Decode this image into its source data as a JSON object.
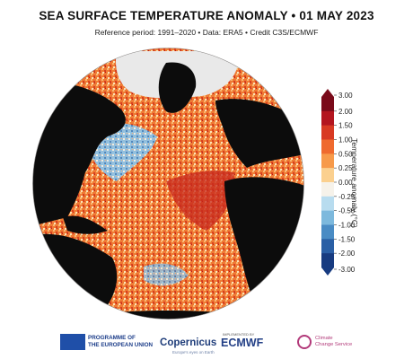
{
  "title": "SEA SURFACE TEMPERATURE ANOMALY • 01 MAY 2023",
  "subtitle": "Reference period: 1991–2020 • Data: ERA5 • Credit C3S/ECMWF",
  "colorbar": {
    "label": "Temperature anomaly (°C)",
    "ticks": [
      "3.00",
      "2.00",
      "1.50",
      "1.00",
      "0.50",
      "0.25",
      "0.00",
      "-0.25",
      "-0.50",
      "-1.00",
      "-1.50",
      "-2.00",
      "-3.00"
    ],
    "colors": [
      "#7a0a1a",
      "#b3151f",
      "#d83a23",
      "#ef6a2e",
      "#f79a4a",
      "#fbd08f",
      "#f6f2ea",
      "#b8dcef",
      "#7db9dd",
      "#4a8cc4",
      "#2a5fa5",
      "#173b80"
    ]
  },
  "colors": {
    "land": "#0c0c0c",
    "ice": "#eeeeee",
    "warm": "#e95a28",
    "cool": "#5b9fd4"
  },
  "logos": {
    "eu_line1": "PROGRAMME OF",
    "eu_line2": "THE EUROPEAN UNION",
    "copernicus": "opernicus",
    "copernicus_sub": "Europe's eyes on Earth",
    "ecmwf_small": "IMPLEMENTED BY",
    "ecmwf": "ECMWF",
    "c3s_line1": "Climate",
    "c3s_line2": "Change Service"
  }
}
